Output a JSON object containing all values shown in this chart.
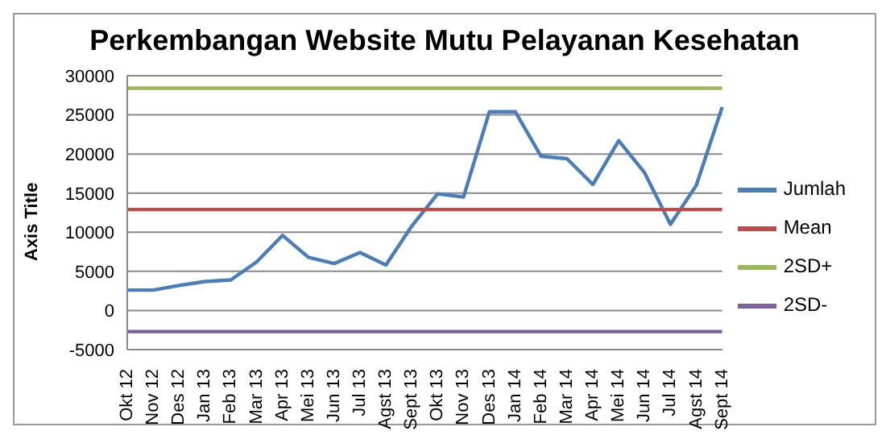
{
  "chart_data": {
    "type": "line",
    "title": "Perkembangan Website Mutu Pelayanan Kesehatan",
    "ylabel": "Axis Title",
    "categories": [
      "Okt 12",
      "Nov 12",
      "Des 12",
      "Jan 13",
      "Feb 13",
      "Mar 13",
      "Apr 13",
      "Mei 13",
      "Jun 13",
      "Jul 13",
      "Agst 13",
      "Sept 13",
      "Okt 13",
      "Nov 13",
      "Des 13",
      "Jan 14",
      "Feb 14",
      "Mar 14",
      "Apr 14",
      "Mei 14",
      "Jun 14",
      "Jul 14",
      "Agst 14",
      "Sept 14"
    ],
    "series": [
      {
        "name": "Jumlah",
        "color": "#4a7ebb",
        "values": [
          2600,
          2600,
          3200,
          3700,
          3900,
          6200,
          9600,
          6800,
          6000,
          7400,
          5800,
          10800,
          14900,
          14500,
          25400,
          25400,
          19700,
          19400,
          16100,
          21700,
          17600,
          11000,
          16000,
          26000
        ]
      },
      {
        "name": "Mean",
        "color": "#be4b48",
        "values": [
          12900,
          12900,
          12900,
          12900,
          12900,
          12900,
          12900,
          12900,
          12900,
          12900,
          12900,
          12900,
          12900,
          12900,
          12900,
          12900,
          12900,
          12900,
          12900,
          12900,
          12900,
          12900,
          12900,
          12900
        ]
      },
      {
        "name": "2SD+",
        "color": "#98b954",
        "values": [
          28400,
          28400,
          28400,
          28400,
          28400,
          28400,
          28400,
          28400,
          28400,
          28400,
          28400,
          28400,
          28400,
          28400,
          28400,
          28400,
          28400,
          28400,
          28400,
          28400,
          28400,
          28400,
          28400,
          28400
        ]
      },
      {
        "name": "2SD-",
        "color": "#7d60a0",
        "values": [
          -2700,
          -2700,
          -2700,
          -2700,
          -2700,
          -2700,
          -2700,
          -2700,
          -2700,
          -2700,
          -2700,
          -2700,
          -2700,
          -2700,
          -2700,
          -2700,
          -2700,
          -2700,
          -2700,
          -2700,
          -2700,
          -2700,
          -2700,
          -2700
        ]
      }
    ],
    "ylim": [
      -5000,
      30000
    ],
    "yticks": [
      -5000,
      0,
      5000,
      10000,
      15000,
      20000,
      25000,
      30000
    ],
    "grid": "y",
    "legend": "right",
    "marker": "none",
    "line_style": "solid"
  }
}
